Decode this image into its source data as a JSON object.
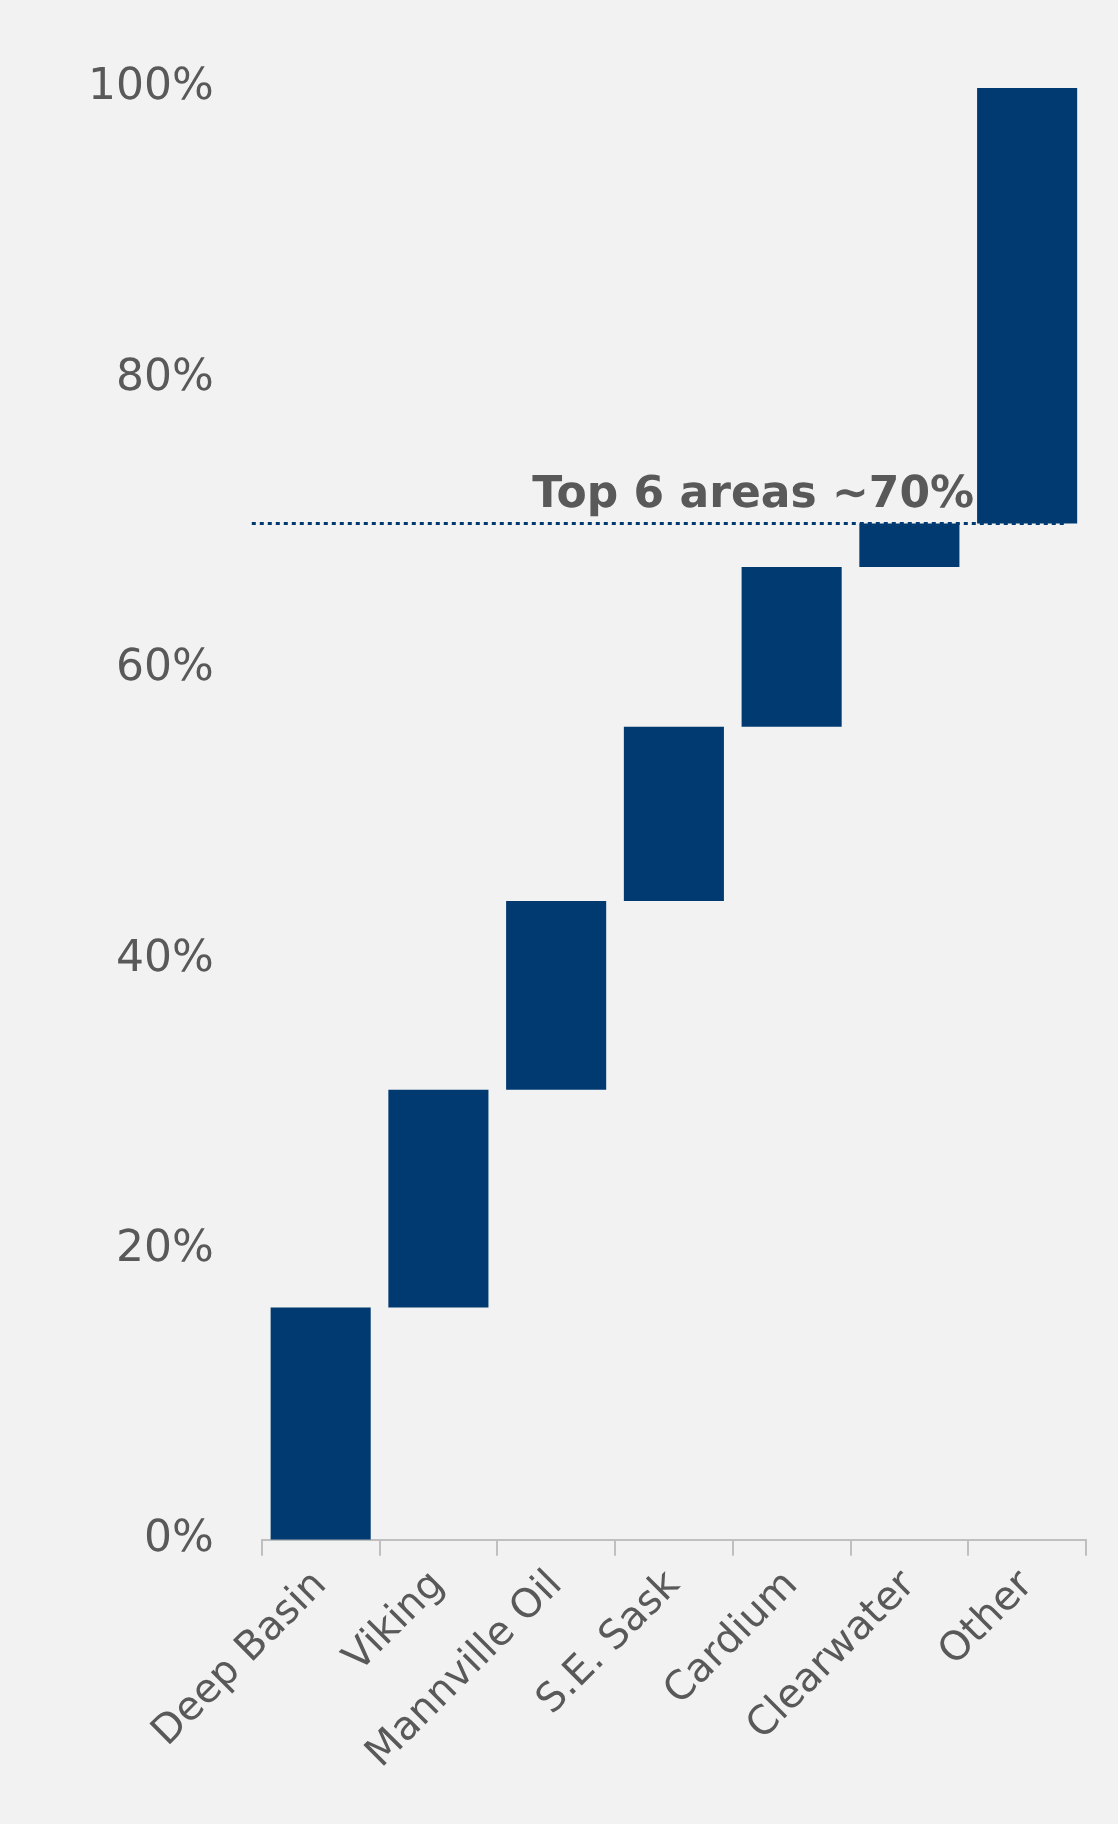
{
  "chart_data": {
    "type": "bar",
    "categories": [
      "Deep Basin",
      "Viking",
      "Mannville Oil",
      "S.E. Sask",
      "Cardium",
      "Clearwater",
      "Other"
    ],
    "values": [
      16,
      15,
      13,
      12,
      11,
      3,
      30
    ],
    "base": [
      0,
      16,
      31,
      44,
      56,
      67,
      70
    ],
    "color": "#003a70",
    "ylim": [
      0,
      100
    ],
    "yticks": [
      {
        "value": 0,
        "label": "0%"
      },
      {
        "value": 20,
        "label": "20%"
      },
      {
        "value": 40,
        "label": "40%"
      },
      {
        "value": 60,
        "label": "60%"
      },
      {
        "value": 80,
        "label": "80%"
      },
      {
        "value": 100,
        "label": "100%"
      }
    ],
    "ref_lines": [
      {
        "axis": "y",
        "value": 70,
        "label": "Top 6 areas ~70%",
        "color": "#003a70",
        "line_style": "dotted"
      }
    ],
    "grid": false,
    "legend": false
  }
}
